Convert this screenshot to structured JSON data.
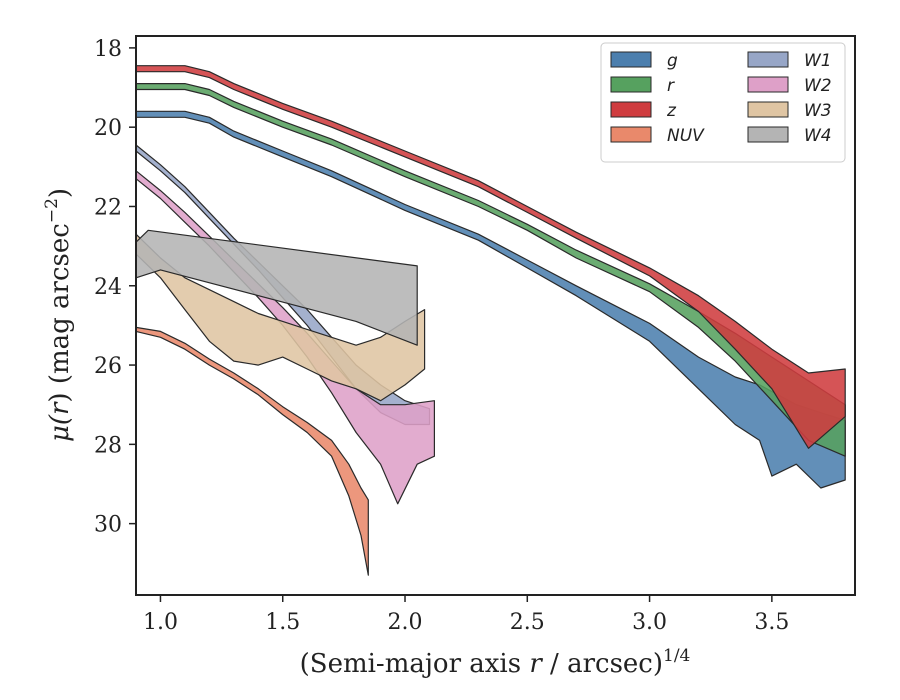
{
  "chart_data": {
    "type": "area",
    "xlabel_main": "(Semi-major axis ",
    "xlabel_var": "r",
    "xlabel_mid": " / arcsec)",
    "xlabel_sup": "1/4",
    "ylabel_main": "μ(",
    "ylabel_var": "r",
    "ylabel_end": ") (mag arcsec",
    "ylabel_sup": "−2",
    "ylabel_close": ")",
    "xlim": [
      0.9,
      3.84
    ],
    "ylim": [
      31.8,
      17.7
    ],
    "y_inverted": true,
    "xticks": [
      "1.0",
      "1.5",
      "2.0",
      "2.5",
      "3.0",
      "3.5"
    ],
    "xtick_values": [
      1.0,
      1.5,
      2.0,
      2.5,
      3.0,
      3.5
    ],
    "yticks": [
      "18",
      "20",
      "22",
      "24",
      "26",
      "28",
      "30"
    ],
    "ytick_values": [
      18,
      20,
      22,
      24,
      26,
      28,
      30
    ],
    "grid": false,
    "legend_position": "top-right",
    "legend_columns": 2,
    "series": [
      {
        "name": "g",
        "color": "#4c7fae",
        "upper": [
          [
            0.9,
            19.6
          ],
          [
            1.1,
            19.6
          ],
          [
            1.2,
            19.75
          ],
          [
            1.3,
            20.1
          ],
          [
            1.5,
            20.6
          ],
          [
            1.7,
            21.1
          ],
          [
            2.0,
            21.95
          ],
          [
            2.3,
            22.7
          ],
          [
            2.5,
            23.35
          ],
          [
            2.7,
            24.0
          ],
          [
            3.0,
            24.95
          ],
          [
            3.2,
            25.8
          ],
          [
            3.35,
            26.3
          ],
          [
            3.45,
            26.5
          ],
          [
            3.6,
            27.0
          ],
          [
            3.8,
            27.4
          ]
        ],
        "lower": [
          [
            0.9,
            19.75
          ],
          [
            1.1,
            19.75
          ],
          [
            1.2,
            19.9
          ],
          [
            1.3,
            20.25
          ],
          [
            1.5,
            20.75
          ],
          [
            1.7,
            21.25
          ],
          [
            2.0,
            22.1
          ],
          [
            2.3,
            22.85
          ],
          [
            2.5,
            23.55
          ],
          [
            2.7,
            24.25
          ],
          [
            3.0,
            25.4
          ],
          [
            3.2,
            26.6
          ],
          [
            3.35,
            27.5
          ],
          [
            3.45,
            27.9
          ],
          [
            3.5,
            28.8
          ],
          [
            3.6,
            28.5
          ],
          [
            3.7,
            29.1
          ],
          [
            3.8,
            28.9
          ]
        ]
      },
      {
        "name": "r",
        "color": "#56a15f",
        "upper": [
          [
            0.9,
            18.9
          ],
          [
            1.1,
            18.9
          ],
          [
            1.2,
            19.05
          ],
          [
            1.3,
            19.35
          ],
          [
            1.5,
            19.85
          ],
          [
            1.7,
            20.3
          ],
          [
            2.0,
            21.1
          ],
          [
            2.3,
            21.85
          ],
          [
            2.5,
            22.45
          ],
          [
            2.7,
            23.1
          ],
          [
            3.0,
            23.95
          ],
          [
            3.2,
            24.65
          ],
          [
            3.35,
            25.2
          ],
          [
            3.5,
            25.8
          ],
          [
            3.65,
            26.4
          ],
          [
            3.8,
            27.0
          ]
        ],
        "lower": [
          [
            0.9,
            19.05
          ],
          [
            1.1,
            19.05
          ],
          [
            1.2,
            19.2
          ],
          [
            1.3,
            19.5
          ],
          [
            1.5,
            20.0
          ],
          [
            1.7,
            20.45
          ],
          [
            2.0,
            21.25
          ],
          [
            2.3,
            22.0
          ],
          [
            2.5,
            22.6
          ],
          [
            2.7,
            23.3
          ],
          [
            3.0,
            24.15
          ],
          [
            3.2,
            25.05
          ],
          [
            3.35,
            25.9
          ],
          [
            3.5,
            26.9
          ],
          [
            3.65,
            27.9
          ],
          [
            3.8,
            28.3
          ]
        ]
      },
      {
        "name": "z",
        "color": "#cf3c3f",
        "upper": [
          [
            0.9,
            18.45
          ],
          [
            1.1,
            18.45
          ],
          [
            1.2,
            18.6
          ],
          [
            1.3,
            18.9
          ],
          [
            1.5,
            19.4
          ],
          [
            1.7,
            19.85
          ],
          [
            2.0,
            20.6
          ],
          [
            2.3,
            21.35
          ],
          [
            2.5,
            22.0
          ],
          [
            2.7,
            22.65
          ],
          [
            3.0,
            23.55
          ],
          [
            3.2,
            24.25
          ],
          [
            3.35,
            24.9
          ],
          [
            3.5,
            25.6
          ],
          [
            3.65,
            26.2
          ],
          [
            3.8,
            26.1
          ]
        ],
        "lower": [
          [
            0.9,
            18.6
          ],
          [
            1.1,
            18.6
          ],
          [
            1.2,
            18.75
          ],
          [
            1.3,
            19.05
          ],
          [
            1.5,
            19.55
          ],
          [
            1.7,
            20.0
          ],
          [
            2.0,
            20.75
          ],
          [
            2.3,
            21.5
          ],
          [
            2.5,
            22.15
          ],
          [
            2.7,
            22.8
          ],
          [
            3.0,
            23.75
          ],
          [
            3.2,
            24.65
          ],
          [
            3.35,
            25.6
          ],
          [
            3.5,
            26.6
          ],
          [
            3.65,
            28.1
          ],
          [
            3.8,
            27.3
          ]
        ]
      },
      {
        "name": "NUV",
        "color": "#e9896b",
        "upper": [
          [
            0.9,
            25.05
          ],
          [
            1.0,
            25.15
          ],
          [
            1.1,
            25.45
          ],
          [
            1.2,
            25.85
          ],
          [
            1.3,
            26.2
          ],
          [
            1.4,
            26.6
          ],
          [
            1.5,
            27.05
          ],
          [
            1.6,
            27.45
          ],
          [
            1.7,
            27.9
          ],
          [
            1.77,
            28.5
          ],
          [
            1.82,
            29.1
          ],
          [
            1.85,
            29.4
          ]
        ],
        "lower": [
          [
            0.9,
            25.15
          ],
          [
            1.0,
            25.3
          ],
          [
            1.1,
            25.6
          ],
          [
            1.2,
            26.0
          ],
          [
            1.3,
            26.35
          ],
          [
            1.4,
            26.75
          ],
          [
            1.5,
            27.25
          ],
          [
            1.6,
            27.7
          ],
          [
            1.7,
            28.3
          ],
          [
            1.77,
            29.3
          ],
          [
            1.82,
            30.3
          ],
          [
            1.85,
            31.3
          ]
        ]
      },
      {
        "name": "W1",
        "color": "#97a6c7",
        "upper": [
          [
            0.9,
            20.45
          ],
          [
            1.0,
            20.95
          ],
          [
            1.1,
            21.5
          ],
          [
            1.2,
            22.15
          ],
          [
            1.3,
            22.8
          ],
          [
            1.4,
            23.4
          ],
          [
            1.5,
            24.0
          ],
          [
            1.6,
            24.6
          ],
          [
            1.7,
            25.3
          ],
          [
            1.8,
            26.0
          ],
          [
            1.9,
            26.5
          ],
          [
            2.0,
            26.9
          ],
          [
            2.1,
            27.1
          ]
        ],
        "lower": [
          [
            0.9,
            20.6
          ],
          [
            1.0,
            21.1
          ],
          [
            1.1,
            21.65
          ],
          [
            1.2,
            22.3
          ],
          [
            1.3,
            22.95
          ],
          [
            1.4,
            23.6
          ],
          [
            1.5,
            24.3
          ],
          [
            1.6,
            25.0
          ],
          [
            1.7,
            25.8
          ],
          [
            1.8,
            26.6
          ],
          [
            1.9,
            27.2
          ],
          [
            2.0,
            27.5
          ],
          [
            2.1,
            27.5
          ]
        ]
      },
      {
        "name": "W2",
        "color": "#dea0c8",
        "upper": [
          [
            0.9,
            21.1
          ],
          [
            1.0,
            21.6
          ],
          [
            1.1,
            22.15
          ],
          [
            1.2,
            22.75
          ],
          [
            1.3,
            23.35
          ],
          [
            1.4,
            23.95
          ],
          [
            1.5,
            24.55
          ],
          [
            1.6,
            25.2
          ],
          [
            1.7,
            25.9
          ],
          [
            1.8,
            26.6
          ],
          [
            1.9,
            27.0
          ],
          [
            2.0,
            27.0
          ],
          [
            2.12,
            26.9
          ]
        ],
        "lower": [
          [
            0.9,
            21.3
          ],
          [
            1.0,
            21.8
          ],
          [
            1.1,
            22.4
          ],
          [
            1.2,
            23.0
          ],
          [
            1.3,
            23.65
          ],
          [
            1.4,
            24.3
          ],
          [
            1.5,
            25.0
          ],
          [
            1.6,
            25.8
          ],
          [
            1.7,
            26.7
          ],
          [
            1.8,
            27.7
          ],
          [
            1.9,
            28.5
          ],
          [
            1.97,
            29.5
          ],
          [
            2.05,
            28.5
          ],
          [
            2.12,
            28.3
          ]
        ]
      },
      {
        "name": "W3",
        "color": "#dfc5a3",
        "upper": [
          [
            0.9,
            22.7
          ],
          [
            1.0,
            23.3
          ],
          [
            1.1,
            23.8
          ],
          [
            1.2,
            24.1
          ],
          [
            1.3,
            24.4
          ],
          [
            1.4,
            24.7
          ],
          [
            1.5,
            24.9
          ],
          [
            1.6,
            25.1
          ],
          [
            1.7,
            25.3
          ],
          [
            1.8,
            25.5
          ],
          [
            1.9,
            25.3
          ],
          [
            2.0,
            24.9
          ],
          [
            2.08,
            24.6
          ]
        ],
        "lower": [
          [
            0.9,
            23.2
          ],
          [
            1.0,
            23.8
          ],
          [
            1.1,
            24.6
          ],
          [
            1.2,
            25.4
          ],
          [
            1.3,
            25.9
          ],
          [
            1.4,
            26.0
          ],
          [
            1.5,
            25.8
          ],
          [
            1.6,
            26.1
          ],
          [
            1.7,
            26.4
          ],
          [
            1.8,
            26.6
          ],
          [
            1.9,
            26.9
          ],
          [
            2.0,
            26.5
          ],
          [
            2.08,
            26.1
          ]
        ]
      },
      {
        "name": "W4",
        "color": "#b4b4b4",
        "upper": [
          [
            0.9,
            22.9
          ],
          [
            0.95,
            22.6
          ],
          [
            2.05,
            23.5
          ]
        ],
        "lower": [
          [
            0.9,
            23.8
          ],
          [
            1.0,
            23.6
          ],
          [
            1.8,
            24.9
          ],
          [
            2.05,
            25.5
          ]
        ]
      }
    ]
  }
}
